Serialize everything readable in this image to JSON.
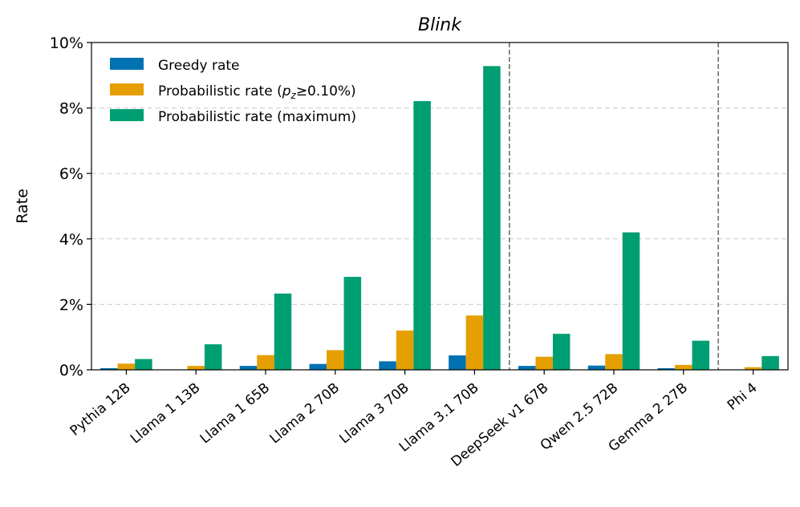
{
  "chart_data": {
    "type": "bar",
    "title": "Blink",
    "xlabel": "",
    "ylabel": "Rate",
    "ylim": [
      0,
      10
    ],
    "yticks": [
      0,
      2,
      4,
      6,
      8,
      10
    ],
    "ytick_labels": [
      "0%",
      "2%",
      "4%",
      "6%",
      "8%",
      "10%"
    ],
    "grid": "horizontal dashed",
    "legend_position": "top-left",
    "categories": [
      "Pythia 12B",
      "Llama 1 13B",
      "Llama 1 65B",
      "Llama 2 70B",
      "Llama 3 70B",
      "Llama 3.1 70B",
      "DeepSeek v1 67B",
      "Qwen 2.5 72B",
      "Gemma 2 27B",
      "Phi 4"
    ],
    "group_separators_after": [
      "Llama 3.1 70B",
      "Gemma 2 27B"
    ],
    "series": [
      {
        "name": "Greedy rate",
        "color": "#0072b2",
        "values": [
          0.05,
          0.0,
          0.12,
          0.18,
          0.26,
          0.44,
          0.12,
          0.13,
          0.05,
          0.0
        ]
      },
      {
        "name": "Probabilistic rate (p_z≥0.10%)",
        "color": "#e69f00",
        "values": [
          0.19,
          0.12,
          0.45,
          0.6,
          1.2,
          1.66,
          0.4,
          0.48,
          0.15,
          0.08
        ]
      },
      {
        "name": "Probabilistic rate (maximum)",
        "color": "#009e73",
        "values": [
          0.33,
          0.78,
          2.33,
          2.84,
          8.21,
          9.28,
          1.1,
          4.2,
          0.89,
          0.42
        ]
      }
    ]
  }
}
